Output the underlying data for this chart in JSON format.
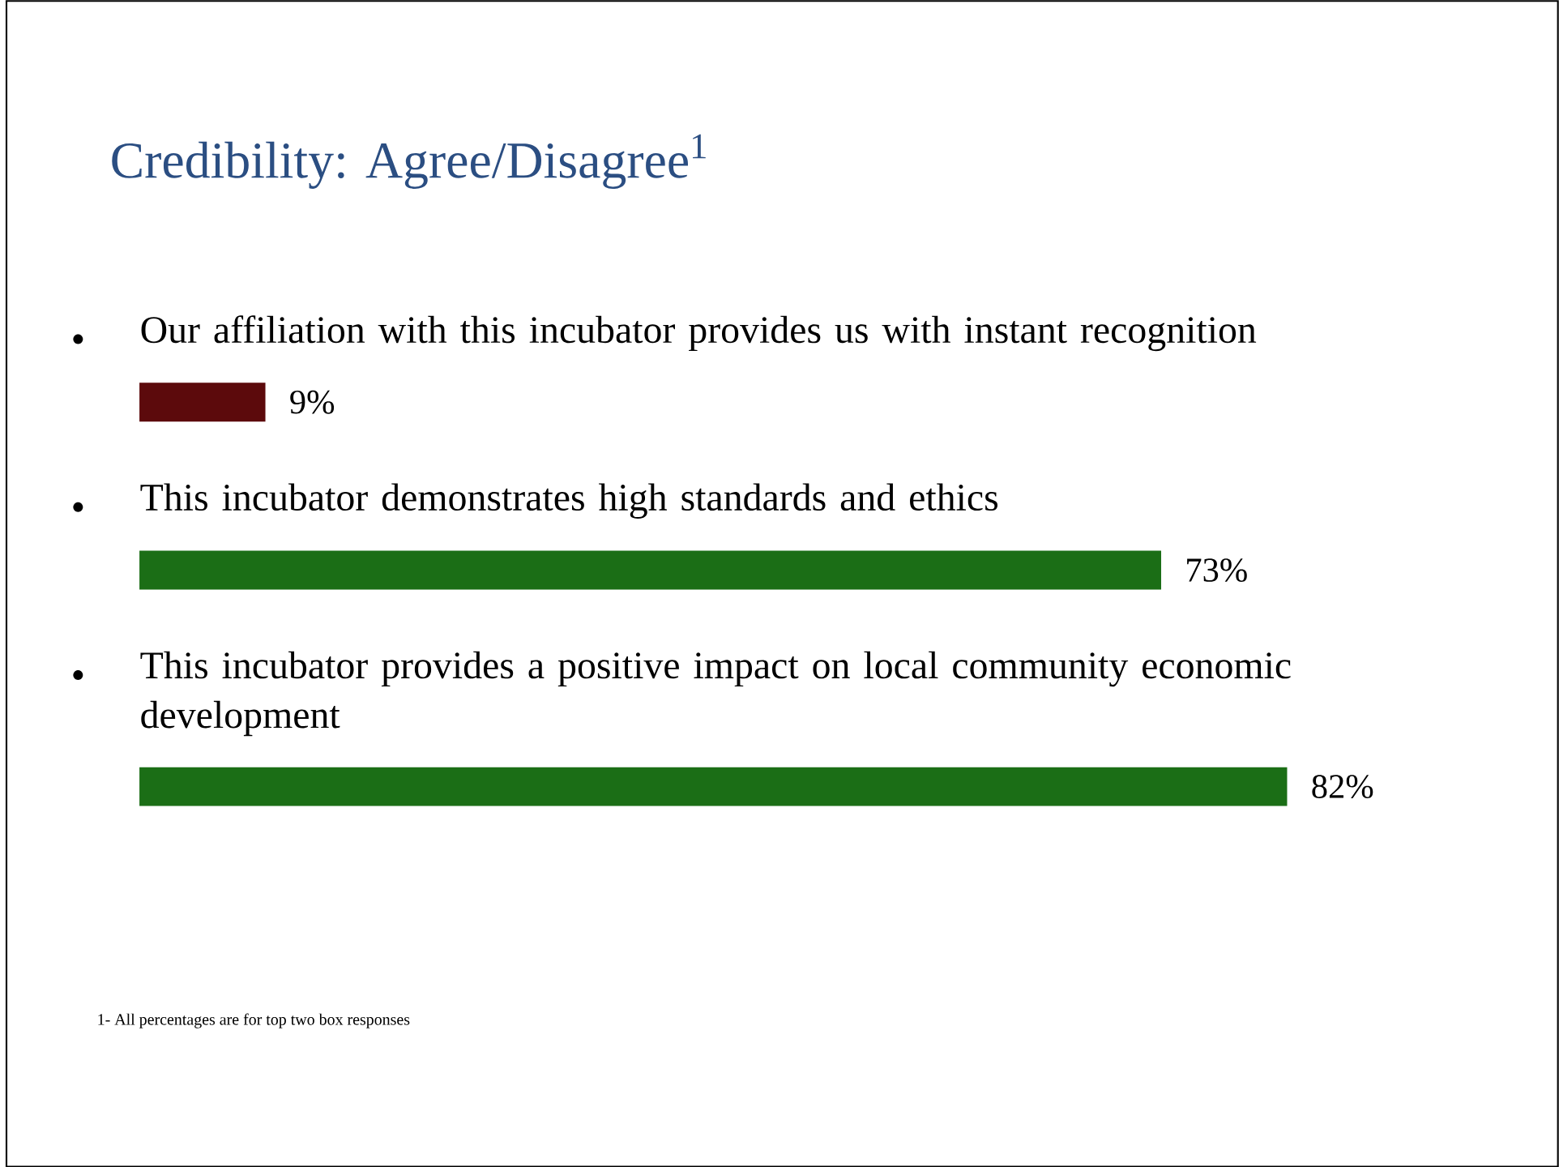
{
  "chart_data": {
    "type": "bar",
    "orientation": "horizontal",
    "title": "Credibility: Agree/Disagree$^{1}$",
    "categories": [
      "Our affiliation with this incubator provides us with instant recognition",
      "This incubator demonstrates high standards and ethics",
      "This incubator provides a positive impact on local community economic development"
    ],
    "values": [
      9,
      73,
      82
    ],
    "colors": [
      "#5c0a0c",
      "#1b6e16",
      "#1b6e16"
    ],
    "value_labels": [
      "9%",
      "73%",
      "82%"
    ],
    "annotations": [
      "1- All percentages are for top two box responses"
    ]
  }
}
